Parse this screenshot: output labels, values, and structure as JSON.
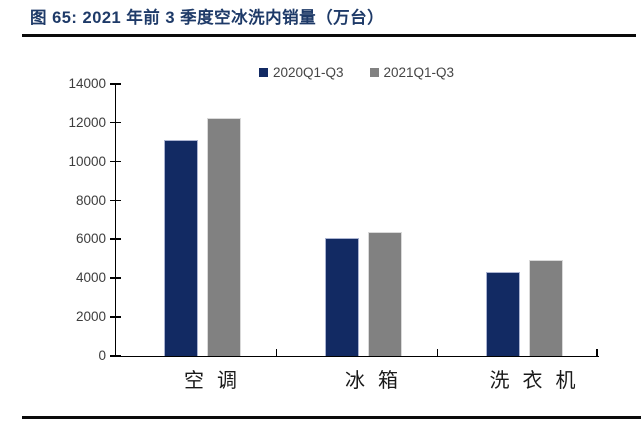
{
  "figure": {
    "title": "图 65: 2021 年前 3 季度空冰洗内销量（万台）"
  },
  "chart_data": {
    "type": "bar",
    "title": "图 65: 2021 年前 3 季度空冰洗内销量（万台）",
    "categories": [
      "空调",
      "冰箱",
      "洗衣机"
    ],
    "series": [
      {
        "name": "2020Q1-Q3",
        "color": "#122a63",
        "edge_color": "#aab3d1",
        "values": [
          11100,
          6050,
          4350
        ]
      },
      {
        "name": "2021Q1-Q3",
        "color": "#818181",
        "edge_color": "#d9d9d9",
        "values": [
          12250,
          6400,
          4950
        ]
      }
    ],
    "xlabel": "",
    "ylabel": "",
    "unit": "万台",
    "ylim": [
      0,
      14000
    ],
    "yticks": [
      0,
      2000,
      4000,
      6000,
      8000,
      10000,
      12000,
      14000
    ],
    "grid": false,
    "legend_position": "top-center"
  },
  "style": {
    "background": "#ffffff",
    "title_color": "#1e3a68",
    "axis_color": "#000000",
    "tick_label_color": "#3d3d3d",
    "legend_text_color": "#454545",
    "rule_color": "#0a0a0a"
  }
}
